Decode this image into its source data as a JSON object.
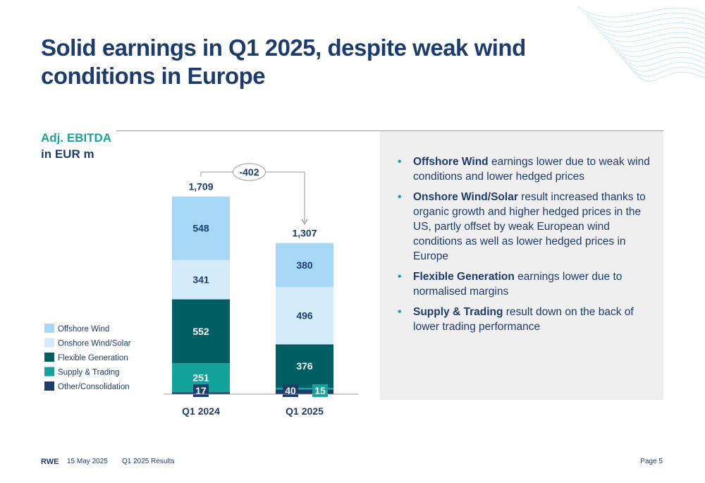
{
  "title": "Solid earnings in Q1 2025, despite weak wind conditions in Europe",
  "metric_label": "Adj. EBITDA",
  "metric_unit": "in EUR m",
  "chart_data": {
    "type": "bar",
    "stacked": true,
    "categories": [
      "Q1 2024",
      "Q1 2025"
    ],
    "series": [
      {
        "name": "Other/Consolidation",
        "values": [
          17,
          40
        ],
        "color": "#1d3c6e"
      },
      {
        "name": "Supply & Trading",
        "values": [
          251,
          15
        ],
        "color": "#13a39a"
      },
      {
        "name": "Flexible Generation",
        "values": [
          552,
          376
        ],
        "color": "#005f63"
      },
      {
        "name": "Onshore Wind/Solar",
        "values": [
          341,
          496
        ],
        "color": "#d4ebf9"
      },
      {
        "name": "Offshore Wind",
        "values": [
          548,
          380
        ],
        "color": "#a4d8f6"
      }
    ],
    "totals": [
      {
        "category": "Q1 2024",
        "label": "1,709"
      },
      {
        "category": "Q1 2025",
        "label": "1,307"
      }
    ],
    "change_label": "-402",
    "legend_order": [
      "Offshore Wind",
      "Onshore Wind/Solar",
      "Flexible Generation",
      "Supply & Trading",
      "Other/Consolidation"
    ],
    "legend_position": "left",
    "grid": false
  },
  "bullets": [
    {
      "bold": "Offshore Wind",
      "text": " earnings lower due to weak wind conditions and lower hedged prices"
    },
    {
      "bold": "Onshore Wind/Solar",
      "text": " result increased thanks to organic growth and higher hedged prices in the US, partly offset by weak European wind conditions as well as lower hedged prices in Europe"
    },
    {
      "bold": "Flexible Generation",
      "text": " earnings lower due to normalised margins"
    },
    {
      "bold": "Supply & Trading",
      "text": " result down on the back of lower trading performance"
    }
  ],
  "bullet_glyph": "•",
  "footer": {
    "brand": "RWE",
    "date": "15 May 2025",
    "doc": "Q1 2025 Results",
    "page": "Page 5"
  },
  "colors": {
    "navy": "#1d3c6e",
    "teal": "#1aa39b",
    "panel": "#efefef"
  }
}
